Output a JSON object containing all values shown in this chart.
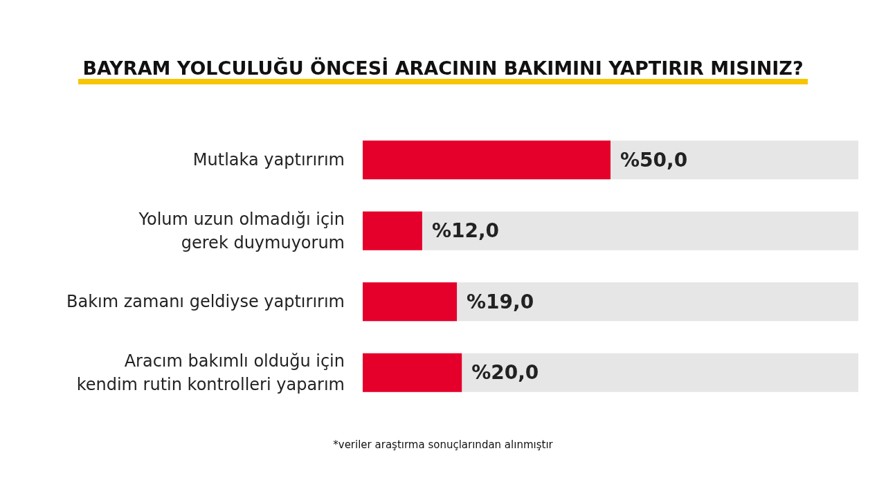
{
  "chart_data": {
    "type": "bar",
    "orientation": "horizontal",
    "title": "BAYRAM YOLCULUĞU ÖNCESİ ARACININ BAKIMINI YAPTIRIR MISINIZ?",
    "categories": [
      "Mutlaka yaptırırım",
      "Yolum uzun olmadığı için\ngerek duymuyorum",
      "Bakım zamanı geldiyse yaptırırım",
      "Aracım bakımlı olduğu için\nkendim rutin kontrolleri yaparım"
    ],
    "values": [
      50,
      12,
      19,
      20
    ],
    "value_labels": [
      "%50,0",
      "%12,0",
      "%19,0",
      "%20,0"
    ],
    "color": "#e4002b",
    "xlim": [
      0,
      100
    ],
    "tick_labels": "y",
    "annotations": [
      "*veriler araştırma sonuçlarından alınmıştır"
    ]
  }
}
